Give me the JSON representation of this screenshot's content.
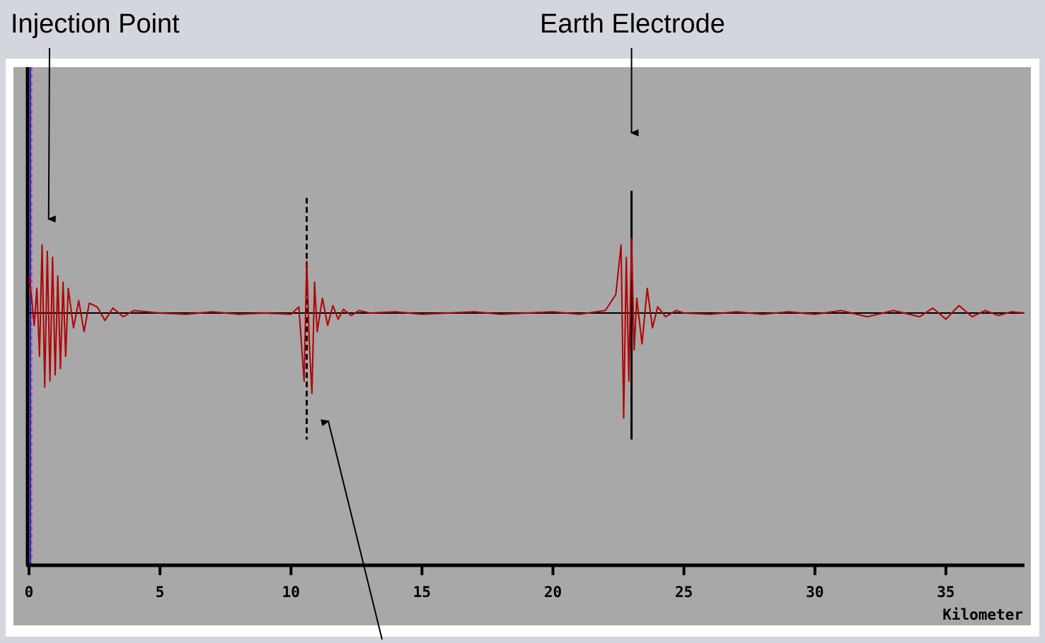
{
  "annotations": {
    "injection_point": "Injection Point",
    "earth_electrode": "Earth Electrode"
  },
  "chart_data": {
    "type": "line",
    "xlabel": "Kilometer",
    "xlim": [
      0,
      38
    ],
    "xticks": [
      0,
      5,
      10,
      15,
      20,
      25,
      30,
      35
    ],
    "xtick_labels": [
      "0",
      "5",
      "10",
      "15",
      "20",
      "25",
      "30",
      "35"
    ],
    "ylim": [
      -1,
      1
    ],
    "grid": false,
    "markers": [
      {
        "name": "injection-point",
        "x": 0.75
      },
      {
        "name": "fault-location",
        "x": 10.6,
        "style": "dashed"
      },
      {
        "name": "earth-electrode",
        "x": 23.0,
        "style": "solid"
      }
    ],
    "series": [
      {
        "color": "#b20000",
        "x": [
          0.0,
          0.1,
          0.2,
          0.3,
          0.4,
          0.5,
          0.6,
          0.7,
          0.8,
          0.9,
          1.0,
          1.1,
          1.2,
          1.3,
          1.4,
          1.5,
          1.7,
          1.9,
          2.1,
          2.3,
          2.6,
          2.9,
          3.2,
          3.6,
          4.0,
          5.0,
          6.0,
          7.0,
          8.0,
          9.0,
          10.0,
          10.3,
          10.5,
          10.6,
          10.7,
          10.8,
          10.9,
          11.0,
          11.2,
          11.4,
          11.6,
          11.8,
          12.0,
          12.3,
          12.6,
          13.0,
          14.0,
          15.0,
          16.0,
          17.0,
          18.0,
          19.0,
          20.0,
          21.0,
          22.0,
          22.4,
          22.6,
          22.7,
          22.8,
          22.9,
          23.0,
          23.1,
          23.2,
          23.4,
          23.6,
          23.8,
          24.0,
          24.3,
          24.7,
          25.0,
          26.0,
          27.0,
          28.0,
          29.0,
          30.0,
          31.0,
          32.0,
          33.0,
          34.0,
          34.5,
          35.0,
          35.5,
          36.0,
          36.5,
          37.0,
          37.5,
          38.0
        ],
        "values": [
          0.3,
          0.12,
          -0.1,
          0.2,
          -0.35,
          0.55,
          -0.6,
          0.5,
          -0.55,
          0.45,
          -0.5,
          0.3,
          -0.45,
          0.25,
          -0.35,
          0.2,
          -0.12,
          0.1,
          -0.15,
          0.08,
          0.05,
          -0.06,
          0.04,
          -0.03,
          0.02,
          0.0,
          -0.01,
          0.01,
          -0.01,
          0.0,
          -0.01,
          0.05,
          -0.55,
          0.42,
          -0.25,
          -0.65,
          0.25,
          -0.15,
          0.12,
          -0.1,
          0.06,
          -0.05,
          0.03,
          -0.02,
          0.02,
          0.0,
          0.01,
          -0.01,
          0.0,
          0.01,
          -0.01,
          0.0,
          0.01,
          -0.01,
          0.02,
          0.15,
          0.55,
          -0.85,
          0.45,
          -0.55,
          0.6,
          -0.3,
          0.12,
          -0.25,
          0.2,
          -0.12,
          0.05,
          -0.03,
          0.02,
          0.0,
          -0.01,
          0.01,
          -0.01,
          0.01,
          -0.01,
          0.02,
          -0.03,
          0.02,
          -0.03,
          0.04,
          -0.05,
          0.06,
          -0.03,
          0.02,
          -0.02,
          0.01,
          0.0
        ]
      }
    ]
  }
}
